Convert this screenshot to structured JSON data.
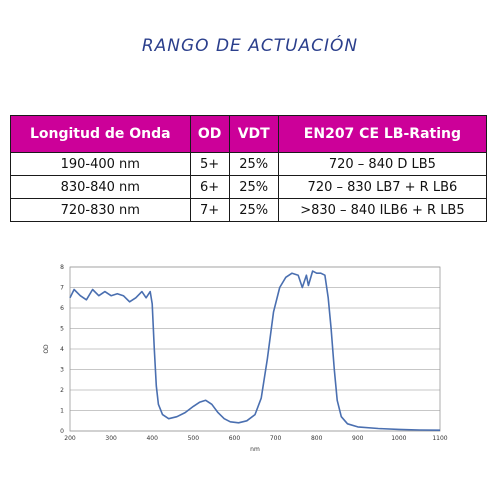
{
  "heading": "RANGO DE ACTUACIÓN",
  "table": {
    "headers": [
      "Longitud de Onda",
      "OD",
      "VDT",
      "EN207 CE LB-Rating"
    ],
    "rows": [
      [
        "190-400 nm",
        "5+",
        "25%",
        "720 – 840 D LB5"
      ],
      [
        "830-840 nm",
        "6+",
        "25%",
        "720 – 830 LB7 + R LB6"
      ],
      [
        "720-830 nm",
        "7+",
        "25%",
        ">830 – 840 ILB6 + R LB5"
      ]
    ]
  },
  "colors": {
    "header_bg": "#cc0099",
    "heading": "#2b3f8c",
    "line": "#4a6fb0"
  },
  "chart_data": {
    "type": "line",
    "xlabel": "nm",
    "ylabel": "OD",
    "xlim": [
      200,
      1100
    ],
    "ylim": [
      0,
      8
    ],
    "xticks": [
      200,
      300,
      400,
      500,
      600,
      700,
      800,
      900,
      1000,
      1100
    ],
    "yticks": [
      0,
      1,
      2,
      3,
      4,
      5,
      6,
      7,
      8
    ],
    "grid": "horizontal",
    "series": [
      {
        "values": [
          [
            200,
            6.5
          ],
          [
            210,
            6.9
          ],
          [
            225,
            6.6
          ],
          [
            240,
            6.4
          ],
          [
            255,
            6.9
          ],
          [
            270,
            6.6
          ],
          [
            285,
            6.8
          ],
          [
            300,
            6.6
          ],
          [
            315,
            6.7
          ],
          [
            330,
            6.6
          ],
          [
            345,
            6.3
          ],
          [
            360,
            6.5
          ],
          [
            375,
            6.8
          ],
          [
            385,
            6.5
          ],
          [
            395,
            6.8
          ],
          [
            400,
            6.2
          ],
          [
            405,
            4.0
          ],
          [
            410,
            2.2
          ],
          [
            415,
            1.3
          ],
          [
            425,
            0.8
          ],
          [
            440,
            0.6
          ],
          [
            460,
            0.7
          ],
          [
            480,
            0.9
          ],
          [
            500,
            1.2
          ],
          [
            515,
            1.4
          ],
          [
            530,
            1.5
          ],
          [
            545,
            1.3
          ],
          [
            560,
            0.9
          ],
          [
            575,
            0.6
          ],
          [
            590,
            0.45
          ],
          [
            610,
            0.4
          ],
          [
            630,
            0.5
          ],
          [
            650,
            0.8
          ],
          [
            665,
            1.6
          ],
          [
            680,
            3.5
          ],
          [
            695,
            5.8
          ],
          [
            710,
            7.0
          ],
          [
            725,
            7.5
          ],
          [
            740,
            7.7
          ],
          [
            755,
            7.6
          ],
          [
            765,
            7.0
          ],
          [
            775,
            7.6
          ],
          [
            780,
            7.1
          ],
          [
            790,
            7.8
          ],
          [
            800,
            7.7
          ],
          [
            810,
            7.7
          ],
          [
            820,
            7.6
          ],
          [
            828,
            6.5
          ],
          [
            835,
            5.0
          ],
          [
            843,
            3.0
          ],
          [
            850,
            1.5
          ],
          [
            860,
            0.7
          ],
          [
            875,
            0.35
          ],
          [
            900,
            0.2
          ],
          [
            950,
            0.12
          ],
          [
            1000,
            0.08
          ],
          [
            1050,
            0.05
          ],
          [
            1100,
            0.04
          ]
        ]
      }
    ]
  }
}
